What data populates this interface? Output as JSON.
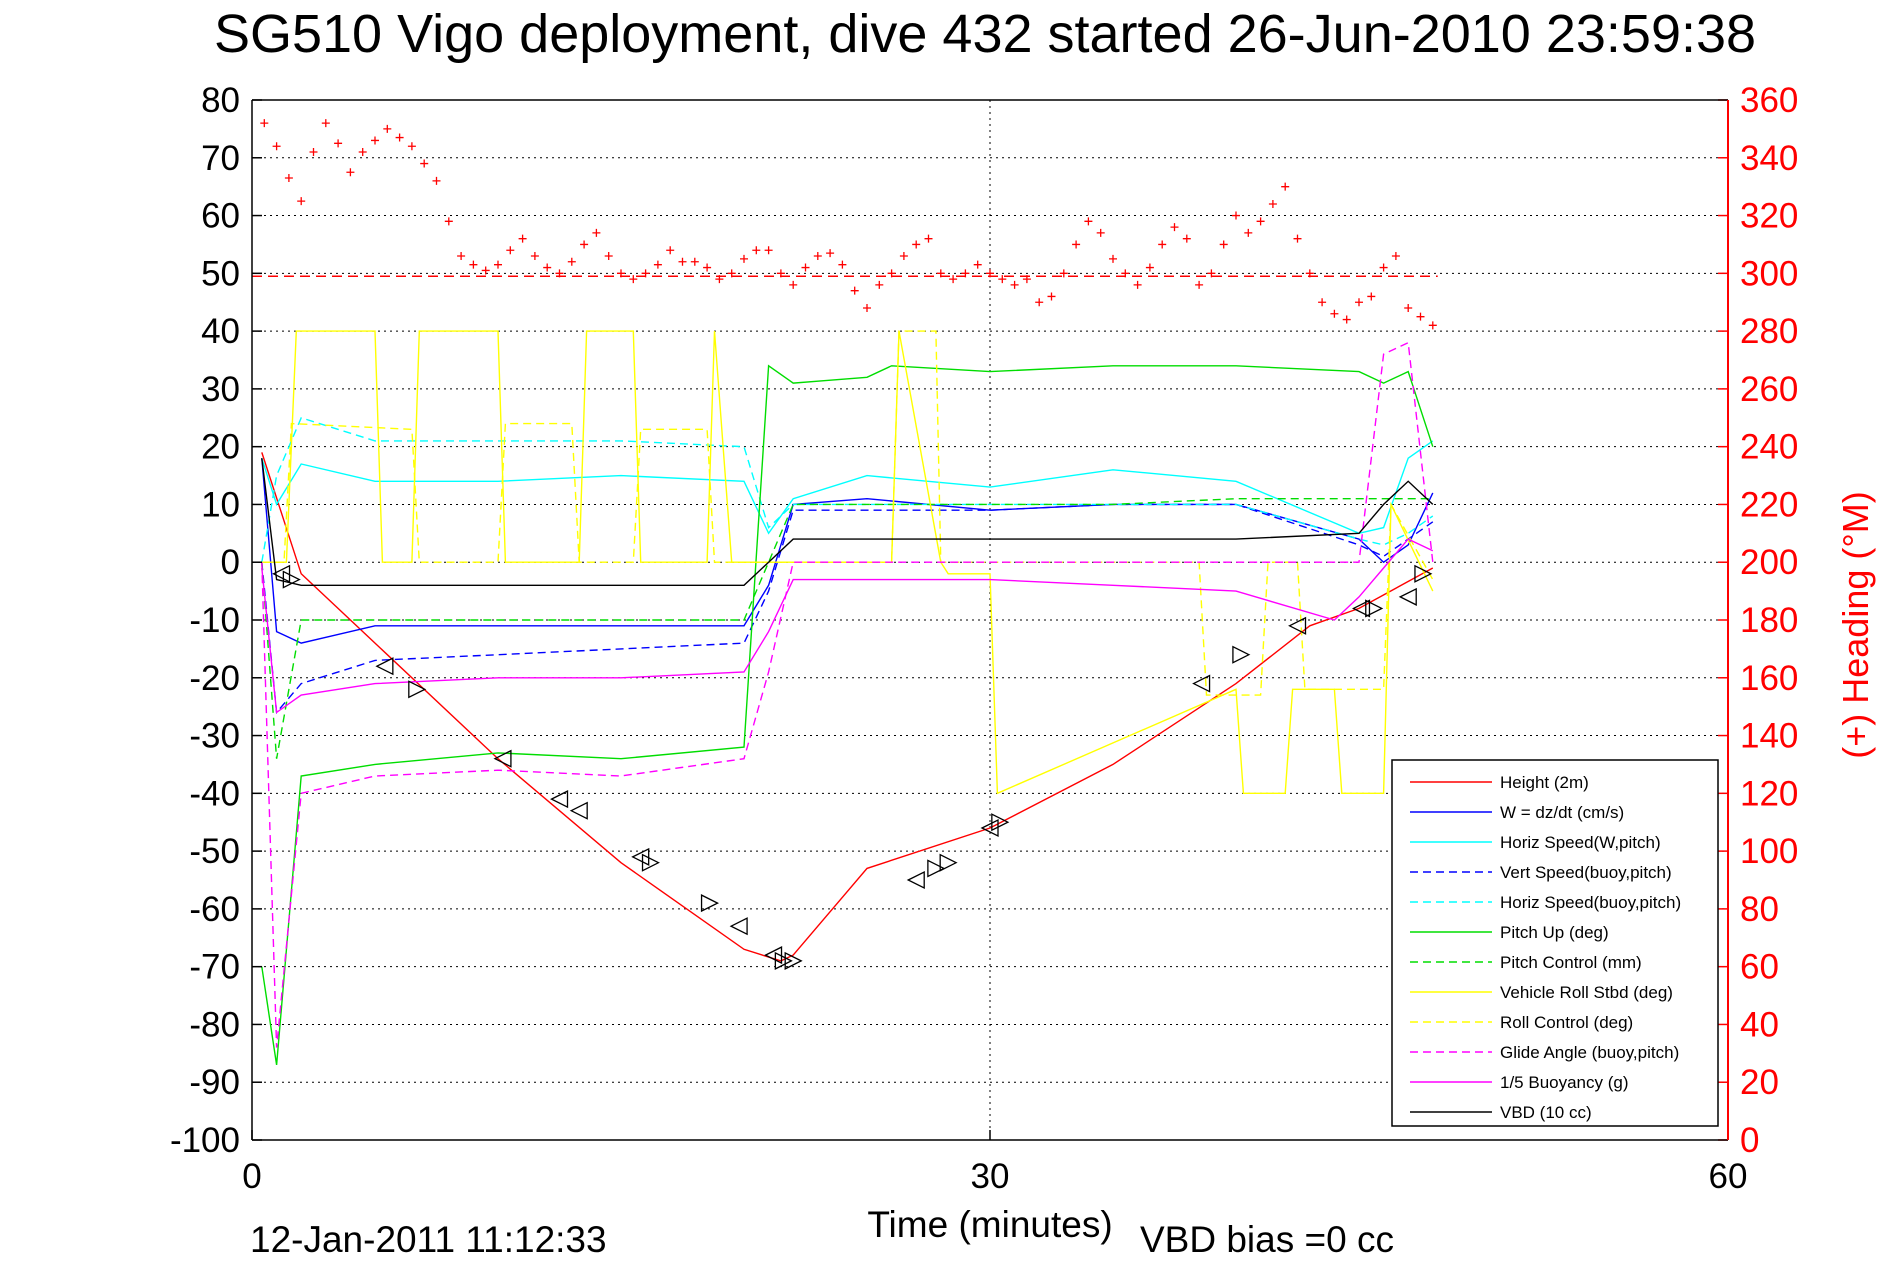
{
  "chart_data": {
    "type": "line",
    "title": "SG510 Vigo deployment, dive 432 started 26-Jun-2010 23:59:38",
    "xlabel": "Time (minutes)",
    "ylabel_right": "(+) Heading (°M)",
    "footer_date": "12-Jan-2011 11:12:33",
    "footer_bias": "VBD bias =0 cc",
    "xlim": [
      0,
      60
    ],
    "ylim": [
      -100,
      80
    ],
    "y2lim": [
      0,
      360
    ],
    "xticks": [
      "0",
      "30",
      "60"
    ],
    "yticks": [
      "80",
      "70",
      "60",
      "50",
      "40",
      "30",
      "20",
      "10",
      "0",
      "-10",
      "-20",
      "-30",
      "-40",
      "-50",
      "-60",
      "-70",
      "-80",
      "-90",
      "-100"
    ],
    "y2ticks": [
      "360",
      "340",
      "320",
      "300",
      "280",
      "260",
      "240",
      "220",
      "200",
      "180",
      "160",
      "140",
      "120",
      "100",
      "80",
      "60",
      "40",
      "20",
      "0"
    ],
    "grid": true,
    "legend_position": "bottom-right",
    "heading_reference": 299,
    "series": [
      {
        "name": "Height (2m)",
        "color": "#ff0000",
        "style": "solid",
        "x": [
          0.4,
          2,
          5,
          10,
          15,
          20,
          21.5,
          22,
          25,
          30,
          35,
          40,
          43,
          45,
          48
        ],
        "y": [
          19,
          -2,
          -14,
          -34,
          -52,
          -67,
          -69,
          -68,
          -53,
          -46,
          -35,
          -21,
          -11,
          -8,
          -1
        ]
      },
      {
        "name": "W = dz/dt (cm/s)",
        "color": "#0000ff",
        "style": "solid",
        "x": [
          0.4,
          1,
          2,
          5,
          10,
          15,
          20,
          21,
          22,
          25,
          30,
          35,
          40,
          45,
          46,
          47,
          48
        ],
        "y": [
          18,
          -12,
          -14,
          -11,
          -11,
          -11,
          -11,
          -4,
          10,
          11,
          9,
          10,
          10,
          4,
          0,
          3,
          12
        ]
      },
      {
        "name": "Horiz Speed(W,pitch)",
        "color": "#00ffff",
        "style": "solid",
        "x": [
          0.4,
          1,
          2,
          5,
          10,
          15,
          20,
          21,
          22,
          25,
          30,
          35,
          40,
          45,
          46,
          47,
          48
        ],
        "y": [
          18,
          10,
          17,
          14,
          14,
          15,
          14,
          5,
          11,
          15,
          13,
          16,
          14,
          5,
          6,
          18,
          21
        ]
      },
      {
        "name": "Vert Speed(buoy,pitch)",
        "color": "#0000ff",
        "style": "dashed",
        "x": [
          0.4,
          1,
          2,
          5,
          10,
          15,
          20,
          21,
          22,
          25,
          30,
          35,
          40,
          45,
          46,
          47,
          48
        ],
        "y": [
          0,
          -26,
          -21,
          -17,
          -16,
          -15,
          -14,
          -5,
          9,
          9,
          9,
          10,
          10,
          3,
          1,
          4,
          7
        ]
      },
      {
        "name": "Horiz Speed(buoy,pitch)",
        "color": "#00ffff",
        "style": "dashed",
        "x": [
          0.4,
          1,
          2,
          5,
          10,
          15,
          20,
          21,
          22,
          25,
          30,
          35,
          40,
          45,
          46,
          47,
          48
        ],
        "y": [
          0,
          15,
          25,
          21,
          21,
          21,
          20,
          6,
          10,
          10,
          10,
          10,
          10,
          4,
          3,
          5,
          8
        ]
      },
      {
        "name": "Pitch Up (deg)",
        "color": "#00dd00",
        "style": "solid",
        "x": [
          0.4,
          1,
          2,
          5,
          10,
          15,
          20,
          21,
          22,
          25,
          26,
          30,
          35,
          40,
          45,
          46,
          47,
          48
        ],
        "y": [
          -70,
          -87,
          -37,
          -35,
          -33,
          -34,
          -32,
          34,
          31,
          32,
          34,
          33,
          34,
          34,
          33,
          31,
          33,
          20
        ]
      },
      {
        "name": "Pitch Control (mm)",
        "color": "#00dd00",
        "style": "dashed",
        "x": [
          0.4,
          1,
          2,
          5,
          10,
          15,
          20,
          21,
          22,
          25,
          30,
          35,
          40,
          45,
          46,
          47,
          48
        ],
        "y": [
          0,
          -34,
          -10,
          -10,
          -10,
          -10,
          -10,
          0,
          10,
          10,
          10,
          10,
          11,
          11,
          11,
          11,
          11
        ]
      },
      {
        "name": "Vehicle Roll Stbd (deg)",
        "color": "#ffff00",
        "style": "solid",
        "x": [
          0.4,
          1.4,
          1.8,
          5,
          5.3,
          6.5,
          6.8,
          10,
          10.3,
          13.3,
          13.6,
          15.5,
          15.8,
          18.5,
          18.8,
          19.5,
          21.5,
          26,
          26.3,
          28,
          28.3,
          30,
          30.3,
          40,
          40.3,
          42,
          42.3,
          44,
          44.3,
          46,
          46.3,
          48
        ],
        "y": [
          0,
          0,
          40,
          40,
          0,
          0,
          40,
          40,
          0,
          0,
          40,
          40,
          0,
          0,
          40,
          0,
          0,
          0,
          40,
          0,
          -2,
          -2,
          -40,
          -22,
          -40,
          -40,
          -22,
          -22,
          -40,
          -40,
          10,
          -5
        ]
      },
      {
        "name": "Roll Control (deg)",
        "color": "#ffff00",
        "style": "dashed",
        "x": [
          0.4,
          1.3,
          1.6,
          6.5,
          6.8,
          10,
          10.3,
          13,
          13.3,
          15.5,
          15.8,
          18.5,
          18.8,
          19.5,
          21.5,
          26,
          26.3,
          27.8,
          28,
          30,
          38.5,
          38.8,
          41,
          41.3,
          42.5,
          42.8,
          46,
          46.3,
          48
        ],
        "y": [
          0,
          0,
          24,
          23,
          0,
          0,
          24,
          24,
          0,
          0,
          23,
          23,
          0,
          0,
          0,
          0,
          40,
          40,
          0,
          0,
          0,
          -23,
          -23,
          0,
          0,
          -22,
          -22,
          10,
          -3
        ]
      },
      {
        "name": "Glide Angle (buoy,pitch)",
        "color": "#ff00ff",
        "style": "dashed",
        "x": [
          0.4,
          1,
          2,
          5,
          10,
          15,
          20,
          21,
          22,
          25,
          30,
          35,
          40,
          44,
          45,
          46,
          47,
          48
        ],
        "y": [
          0,
          -84,
          -40,
          -37,
          -36,
          -37,
          -34,
          -19,
          0,
          0,
          0,
          0,
          0,
          0,
          0,
          36,
          38,
          0
        ]
      },
      {
        "name": "1/5 Buoyancy (g)",
        "color": "#ff00ff",
        "style": "solid",
        "x": [
          0.4,
          1,
          2,
          5,
          10,
          15,
          20,
          21,
          22,
          25,
          30,
          35,
          40,
          44,
          45,
          46,
          47,
          48
        ],
        "y": [
          -1,
          -26,
          -23,
          -21,
          -20,
          -20,
          -19,
          -12,
          -3,
          -3,
          -3,
          -4,
          -5,
          -10,
          -6,
          -1,
          4,
          2
        ]
      },
      {
        "name": "VBD (10 cc)",
        "color": "#000000",
        "style": "solid",
        "x": [
          0.4,
          1,
          2,
          5,
          10,
          15,
          20,
          21,
          22,
          25,
          30,
          35,
          40,
          45,
          46,
          47,
          48
        ],
        "y": [
          18,
          -3,
          -4,
          -4,
          -4,
          -4,
          -4,
          0,
          4,
          4,
          4,
          4,
          4,
          5,
          10,
          14,
          10
        ]
      }
    ],
    "heading_points": {
      "name": "Heading",
      "color": "#ff0000",
      "marker": "+",
      "x": [
        0.5,
        1,
        1.5,
        2,
        2.5,
        3,
        3.5,
        4,
        4.5,
        5,
        5.5,
        6,
        6.5,
        7,
        7.5,
        8,
        8.5,
        9,
        9.5,
        10,
        10.5,
        11,
        11.5,
        12,
        12.5,
        13,
        13.5,
        14,
        14.5,
        15,
        15.5,
        16,
        16.5,
        17,
        17.5,
        18,
        18.5,
        19,
        19.5,
        20,
        20.5,
        21,
        21.5,
        22,
        22.5,
        23,
        23.5,
        24,
        24.5,
        25,
        25.5,
        26,
        26.5,
        27,
        27.5,
        28,
        28.5,
        29,
        29.5,
        30,
        30.5,
        31,
        31.5,
        32,
        32.5,
        33,
        33.5,
        34,
        34.5,
        35,
        35.5,
        36,
        36.5,
        37,
        37.5,
        38,
        38.5,
        39,
        39.5,
        40,
        40.5,
        41,
        41.5,
        42,
        42.5,
        43,
        43.5,
        44,
        44.5,
        45,
        45.5,
        46,
        46.5,
        47,
        47.5,
        48
      ],
      "y": [
        352,
        344,
        333,
        325,
        342,
        352,
        345,
        335,
        342,
        346,
        350,
        347,
        344,
        338,
        332,
        318,
        306,
        303,
        301,
        303,
        308,
        312,
        306,
        302,
        300,
        304,
        310,
        314,
        306,
        300,
        298,
        300,
        303,
        308,
        304,
        304,
        302,
        298,
        300,
        305,
        308,
        308,
        300,
        296,
        302,
        306,
        307,
        303,
        294,
        288,
        296,
        300,
        306,
        310,
        312,
        300,
        298,
        300,
        303,
        300,
        298,
        296,
        298,
        290,
        292,
        300,
        310,
        318,
        314,
        305,
        300,
        296,
        302,
        310,
        316,
        312,
        296,
        300,
        310,
        320,
        314,
        318,
        324,
        330,
        312,
        300,
        290,
        286,
        284,
        290,
        292,
        302,
        306,
        288,
        285,
        282
      ]
    },
    "markers": {
      "name": "ballast markers",
      "color": "#000000",
      "marker": "triangle",
      "points": [
        {
          "x": 1.2,
          "y": -2,
          "dir": "left"
        },
        {
          "x": 1.6,
          "y": -3,
          "dir": "right"
        },
        {
          "x": 5.4,
          "y": -18,
          "dir": "left"
        },
        {
          "x": 6.7,
          "y": -22,
          "dir": "right"
        },
        {
          "x": 10.2,
          "y": -34,
          "dir": "left"
        },
        {
          "x": 12.5,
          "y": -41,
          "dir": "left"
        },
        {
          "x": 13.3,
          "y": -43,
          "dir": "left"
        },
        {
          "x": 15.8,
          "y": -51,
          "dir": "left"
        },
        {
          "x": 16.2,
          "y": -52,
          "dir": "right"
        },
        {
          "x": 18.6,
          "y": -59,
          "dir": "right"
        },
        {
          "x": 19.8,
          "y": -63,
          "dir": "left"
        },
        {
          "x": 21.2,
          "y": -68,
          "dir": "left"
        },
        {
          "x": 21.6,
          "y": -69,
          "dir": "right"
        },
        {
          "x": 22.0,
          "y": -69,
          "dir": "right"
        },
        {
          "x": 27.0,
          "y": -55,
          "dir": "left"
        },
        {
          "x": 27.8,
          "y": -53,
          "dir": "right"
        },
        {
          "x": 28.3,
          "y": -52,
          "dir": "right"
        },
        {
          "x": 30.0,
          "y": -46,
          "dir": "left"
        },
        {
          "x": 30.4,
          "y": -45,
          "dir": "right"
        },
        {
          "x": 38.6,
          "y": -21,
          "dir": "left"
        },
        {
          "x": 40.2,
          "y": -16,
          "dir": "right"
        },
        {
          "x": 42.5,
          "y": -11,
          "dir": "left"
        },
        {
          "x": 45.1,
          "y": -8,
          "dir": "left"
        },
        {
          "x": 45.6,
          "y": -8,
          "dir": "right"
        },
        {
          "x": 47.0,
          "y": -6,
          "dir": "left"
        },
        {
          "x": 47.6,
          "y": -2,
          "dir": "right"
        }
      ]
    }
  }
}
